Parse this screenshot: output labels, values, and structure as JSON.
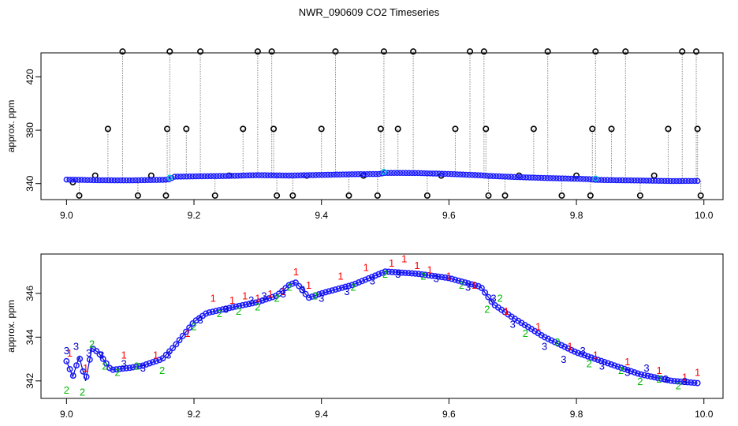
{
  "figure_title": "NWR_090609  CO2 Timeseries",
  "colors": {
    "frame": "#000000",
    "grey_dotted": "#888888",
    "raw_circle": "#000000",
    "avg_circle": "#1a1aff",
    "cyan": "#00cccc",
    "series1": "#ff0000",
    "series2": "#00bb00",
    "series3": "#0000cc"
  },
  "chart_data": [
    {
      "type": "scatter",
      "title": "",
      "xlabel": "",
      "ylabel": "approx. ppm",
      "xlim": [
        8.96,
        10.03
      ],
      "ylim": [
        328,
        438
      ],
      "xticks": [
        9.0,
        9.2,
        9.4,
        9.6,
        9.8,
        10.0
      ],
      "xtick_labels": [
        "9.0",
        "9.2",
        "9.4",
        "9.6",
        "9.8",
        "10.0"
      ],
      "yticks": [
        340,
        380,
        420
      ],
      "ytick_labels": [
        "340",
        "380",
        "420"
      ],
      "baseline_series": {
        "name": "averaged CO2",
        "x": [
          9.0,
          9.05,
          9.1,
          9.15,
          9.16,
          9.17,
          9.2,
          9.25,
          9.3,
          9.35,
          9.4,
          9.45,
          9.49,
          9.5,
          9.55,
          9.6,
          9.65,
          9.66,
          9.7,
          9.75,
          9.8,
          9.82,
          9.83,
          9.85,
          9.9,
          9.95,
          9.99
        ],
        "y": [
          343,
          342.5,
          342.4,
          342.8,
          343,
          345.2,
          345.4,
          345.7,
          346.3,
          346,
          346.5,
          347,
          347.2,
          348,
          347.9,
          347.2,
          346.2,
          345.8,
          345,
          344.2,
          343.6,
          343.3,
          342.8,
          342.6,
          342.3,
          341.9,
          342
        ]
      },
      "spike_points": {
        "name": "flagged raw samples",
        "x": [
          9.01,
          9.02,
          9.045,
          9.065,
          9.088,
          9.112,
          9.133,
          9.156,
          9.158,
          9.162,
          9.188,
          9.21,
          9.233,
          9.255,
          9.277,
          9.3,
          9.322,
          9.325,
          9.33,
          9.355,
          9.377,
          9.4,
          9.422,
          9.443,
          9.466,
          9.488,
          9.493,
          9.498,
          9.52,
          9.544,
          9.566,
          9.588,
          9.61,
          9.633,
          9.655,
          9.658,
          9.662,
          9.688,
          9.71,
          9.733,
          9.755,
          9.777,
          9.8,
          9.822,
          9.825,
          9.83,
          9.855,
          9.877,
          9.9,
          9.922,
          9.944,
          9.966,
          9.988,
          9.99,
          9.995
        ],
        "y": [
          341,
          331,
          346,
          381,
          439,
          331,
          346,
          331,
          381,
          439,
          381,
          439,
          331,
          346,
          381,
          439,
          439,
          381,
          331,
          331,
          346,
          381,
          439,
          331,
          346,
          331,
          381,
          439,
          381,
          439,
          331,
          346,
          381,
          439,
          439,
          381,
          331,
          331,
          346,
          381,
          439,
          331,
          346,
          331,
          381,
          439,
          381,
          439,
          331,
          346,
          381,
          439,
          439,
          381,
          331
        ]
      }
    },
    {
      "type": "scatter",
      "title": "",
      "xlabel": "",
      "ylabel": "approx. ppm",
      "xlim": [
        8.96,
        10.03
      ],
      "ylim": [
        341.2,
        347.8
      ],
      "xticks": [
        9.0,
        9.2,
        9.4,
        9.6,
        9.8,
        10.0
      ],
      "xtick_labels": [
        "9.0",
        "9.2",
        "9.4",
        "9.6",
        "9.8",
        "10.0"
      ],
      "yticks": [
        342,
        344,
        346
      ],
      "ytick_labels": [
        "342",
        "344",
        "346"
      ],
      "trend": {
        "name": "averaged CO2",
        "x": [
          9.0,
          9.01,
          9.02,
          9.03,
          9.04,
          9.05,
          9.07,
          9.1,
          9.12,
          9.15,
          9.17,
          9.2,
          9.22,
          9.25,
          9.3,
          9.33,
          9.35,
          9.36,
          9.38,
          9.4,
          9.45,
          9.5,
          9.55,
          9.6,
          9.65,
          9.67,
          9.7,
          9.75,
          9.8,
          9.85,
          9.9,
          9.95,
          9.99
        ],
        "y": [
          342.9,
          342.2,
          343.1,
          342.0,
          343.5,
          343.3,
          342.5,
          342.6,
          342.7,
          343.0,
          343.6,
          344.7,
          345.1,
          345.3,
          345.6,
          345.9,
          346.4,
          346.5,
          345.8,
          346.0,
          346.4,
          347.0,
          346.9,
          346.7,
          346.3,
          345.5,
          344.9,
          344.0,
          343.3,
          342.8,
          342.3,
          342.0,
          341.9
        ]
      },
      "series": [
        {
          "name": "1",
          "label": "1",
          "x": [
            9.005,
            9.03,
            9.09,
            9.14,
            9.19,
            9.23,
            9.26,
            9.28,
            9.3,
            9.32,
            9.34,
            9.36,
            9.38,
            9.43,
            9.47,
            9.51,
            9.53,
            9.55,
            9.57,
            9.6,
            9.64,
            9.69,
            9.74,
            9.79,
            9.83,
            9.88,
            9.93,
            9.97,
            9.99
          ],
          "y": [
            343.3,
            342.6,
            343.2,
            343.2,
            344.2,
            345.8,
            345.7,
            345.9,
            345.8,
            346.0,
            346.1,
            347.0,
            346.4,
            346.8,
            347.2,
            347.4,
            347.6,
            347.3,
            347.1,
            346.8,
            346.4,
            345.2,
            344.5,
            343.6,
            343.2,
            342.9,
            342.5,
            342.2,
            342.4
          ]
        },
        {
          "name": "2",
          "label": "2",
          "x": [
            9.0,
            9.025,
            9.04,
            9.06,
            9.08,
            9.11,
            9.15,
            9.2,
            9.24,
            9.27,
            9.3,
            9.33,
            9.35,
            9.39,
            9.45,
            9.5,
            9.56,
            9.62,
            9.66,
            9.68,
            9.72,
            9.77,
            9.82,
            9.87,
            9.9,
            9.93,
            9.96
          ],
          "y": [
            341.6,
            341.5,
            343.7,
            342.7,
            342.4,
            342.7,
            342.5,
            344.5,
            345.1,
            345.2,
            345.4,
            345.8,
            346.3,
            345.9,
            346.3,
            346.9,
            346.8,
            346.4,
            345.3,
            345.8,
            344.2,
            343.8,
            342.8,
            342.5,
            342.0,
            342.1,
            341.8
          ]
        },
        {
          "name": "3",
          "label": "3",
          "x": [
            9.0,
            9.015,
            9.035,
            9.055,
            9.09,
            9.12,
            9.16,
            9.21,
            9.25,
            9.29,
            9.31,
            9.34,
            9.37,
            9.4,
            9.44,
            9.48,
            9.52,
            9.58,
            9.63,
            9.67,
            9.7,
            9.75,
            9.78,
            9.81,
            9.84,
            9.88,
            9.91,
            9.94,
            9.97
          ],
          "y": [
            343.4,
            343.6,
            343.3,
            343.2,
            342.8,
            342.6,
            343.2,
            344.8,
            345.3,
            345.7,
            345.9,
            346.0,
            346.2,
            345.8,
            346.1,
            346.6,
            346.9,
            346.7,
            346.3,
            345.8,
            344.6,
            343.6,
            343.0,
            343.4,
            342.7,
            342.4,
            342.6,
            342.1,
            342.0
          ]
        }
      ]
    }
  ]
}
